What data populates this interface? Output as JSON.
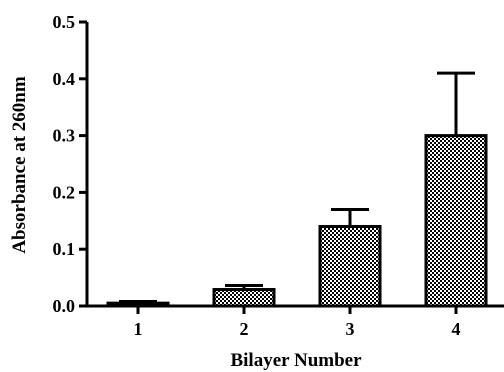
{
  "chart_data": {
    "type": "bar",
    "title": "",
    "xlabel": "Bilayer Number",
    "ylabel": "Absorbance at 260nm",
    "categories": [
      "1",
      "2",
      "3",
      "4"
    ],
    "values": [
      0.005,
      0.029,
      0.14,
      0.3
    ],
    "error_upper": [
      0.008,
      0.036,
      0.17,
      0.41
    ],
    "ylim": [
      0.0,
      0.5
    ],
    "yticks": [
      0.0,
      0.1,
      0.2,
      0.3,
      0.4,
      0.5
    ],
    "ytick_labels": [
      "0.0",
      "0.1",
      "0.2",
      "0.3",
      "0.4",
      "0.5"
    ],
    "bar_fill": "checkered",
    "colors": {
      "bar_edge": "#000000",
      "check_dark": "#000000",
      "check_light": "#ffffff"
    },
    "grid": false,
    "legend": "none"
  }
}
